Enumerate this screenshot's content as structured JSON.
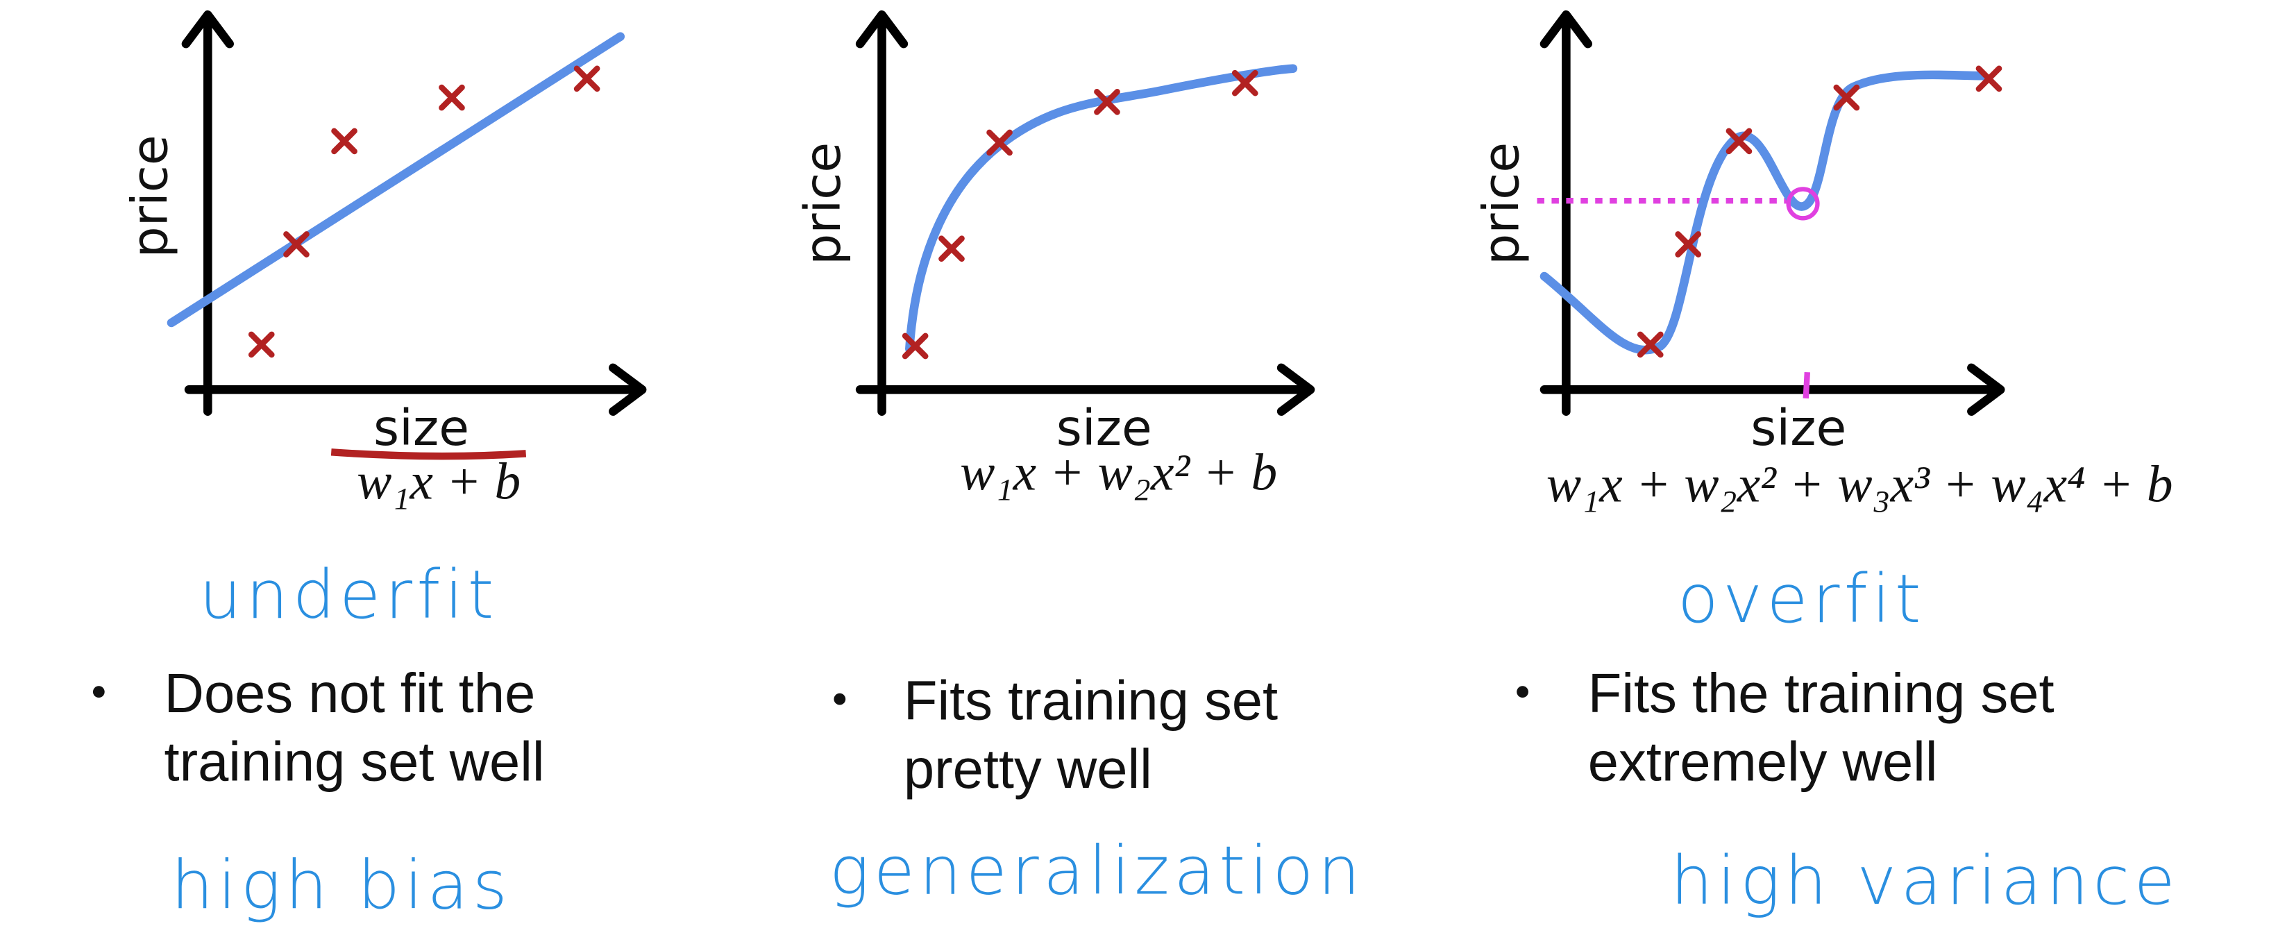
{
  "panels": [
    {
      "y_label": "price",
      "x_label": "size",
      "equation": "w₁x + b",
      "verdict": "underfit",
      "bullet": [
        "Does not fit the",
        "training set well"
      ],
      "note": "high bias"
    },
    {
      "y_label": "price",
      "x_label": "size",
      "equation": "w₁x + w₂x² + b",
      "verdict": null,
      "bullet": [
        "Fits training set",
        "pretty well"
      ],
      "note": "generalization"
    },
    {
      "y_label": "price",
      "x_label": "size",
      "equation": "w₁x + w₂x² + w₃x³ + w₄x⁴ + b",
      "verdict": "overfit",
      "bullet": [
        "Fits the training set",
        "extremely well"
      ],
      "note": "high variance"
    }
  ]
}
